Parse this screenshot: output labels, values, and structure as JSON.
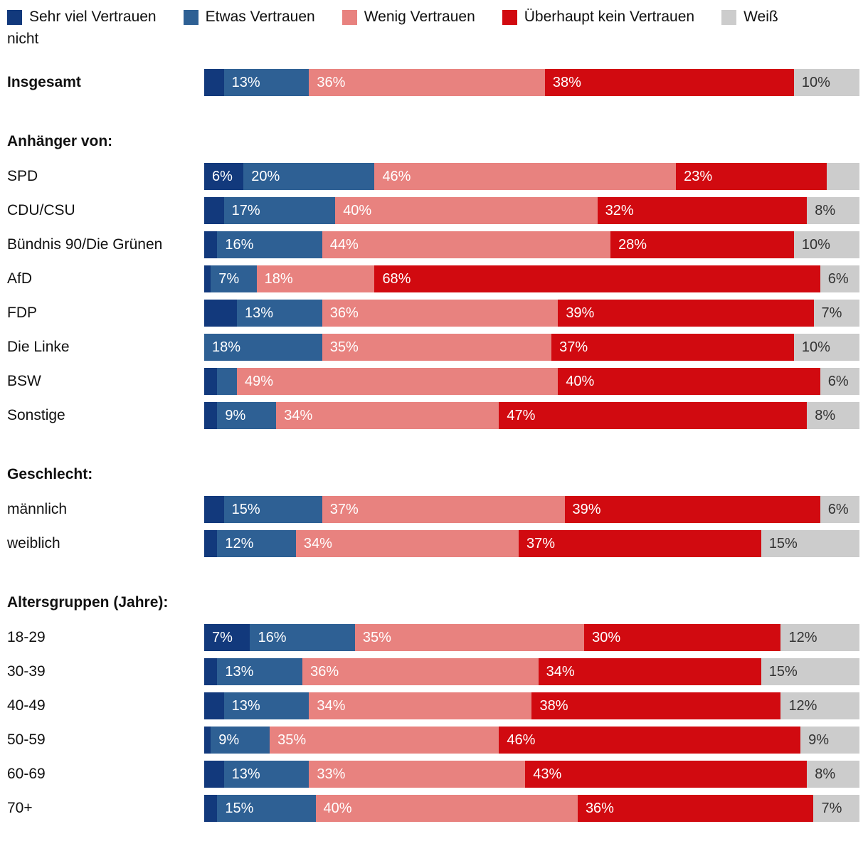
{
  "legend": {
    "items": [
      {
        "label": "Sehr viel Vertrauen",
        "color": "#12397c"
      },
      {
        "label": "Etwas Vertrauen",
        "color": "#2e6094"
      },
      {
        "label": "Wenig Vertrauen",
        "color": "#e8827f"
      },
      {
        "label": "Überhaupt kein Vertrauen",
        "color": "#d10a10"
      },
      {
        "label": "Weiß",
        "color": "#cccccc"
      }
    ],
    "wrap_text": "nicht"
  },
  "chart_data": {
    "type": "bar",
    "stacked": true,
    "orientation": "horizontal",
    "value_suffix": "%",
    "label_min_value": 6,
    "xlim": [
      0,
      100
    ],
    "legend_position": "top",
    "grid": false,
    "series": [
      {
        "name": "Sehr viel Vertrauen",
        "slug": "sehr-viel-vertrauen",
        "color": "#12397c"
      },
      {
        "name": "Etwas Vertrauen",
        "slug": "etwas-vertrauen",
        "color": "#2e6094"
      },
      {
        "name": "Wenig Vertrauen",
        "slug": "wenig-vertrauen",
        "color": "#e8827f"
      },
      {
        "name": "Überhaupt kein Vertrauen",
        "slug": "ueberhaupt-kein-vertrauen",
        "color": "#d10a10"
      },
      {
        "name": "Weiß nicht",
        "slug": "weiss-nicht",
        "color": "#cccccc"
      }
    ],
    "groups": [
      {
        "header": "",
        "rows": [
          {
            "label": "Insgesamt",
            "bold": true,
            "values": [
              3,
              13,
              36,
              38,
              10
            ]
          }
        ]
      },
      {
        "header": "Anhänger von:",
        "rows": [
          {
            "label": "SPD",
            "values": [
              6,
              20,
              46,
              23,
              5
            ]
          },
          {
            "label": "CDU/CSU",
            "values": [
              3,
              17,
              40,
              32,
              8
            ]
          },
          {
            "label": "Bündnis 90/Die Grünen",
            "values": [
              2,
              16,
              44,
              28,
              10
            ]
          },
          {
            "label": "AfD",
            "values": [
              1,
              7,
              18,
              68,
              6
            ]
          },
          {
            "label": "FDP",
            "values": [
              5,
              13,
              36,
              39,
              7
            ]
          },
          {
            "label": "Die Linke",
            "values": [
              0,
              18,
              35,
              37,
              10
            ]
          },
          {
            "label": "BSW",
            "values": [
              2,
              3,
              49,
              40,
              6
            ]
          },
          {
            "label": "Sonstige",
            "values": [
              2,
              9,
              34,
              47,
              8
            ]
          }
        ]
      },
      {
        "header": "Geschlecht:",
        "rows": [
          {
            "label": "männlich",
            "values": [
              3,
              15,
              37,
              39,
              6
            ]
          },
          {
            "label": "weiblich",
            "values": [
              2,
              12,
              34,
              37,
              15
            ]
          }
        ]
      },
      {
        "header": "Altersgruppen (Jahre):",
        "rows": [
          {
            "label": "18-29",
            "values": [
              7,
              16,
              35,
              30,
              12
            ]
          },
          {
            "label": "30-39",
            "values": [
              2,
              13,
              36,
              34,
              15
            ]
          },
          {
            "label": "40-49",
            "values": [
              3,
              13,
              34,
              38,
              12
            ]
          },
          {
            "label": "50-59",
            "values": [
              1,
              9,
              35,
              46,
              9
            ]
          },
          {
            "label": "60-69",
            "values": [
              3,
              13,
              33,
              43,
              8
            ]
          },
          {
            "label": "70+",
            "values": [
              2,
              15,
              40,
              36,
              7
            ]
          }
        ]
      }
    ],
    "bar_label_color": "#ffffff",
    "last_segment_label_color": "#333333"
  }
}
